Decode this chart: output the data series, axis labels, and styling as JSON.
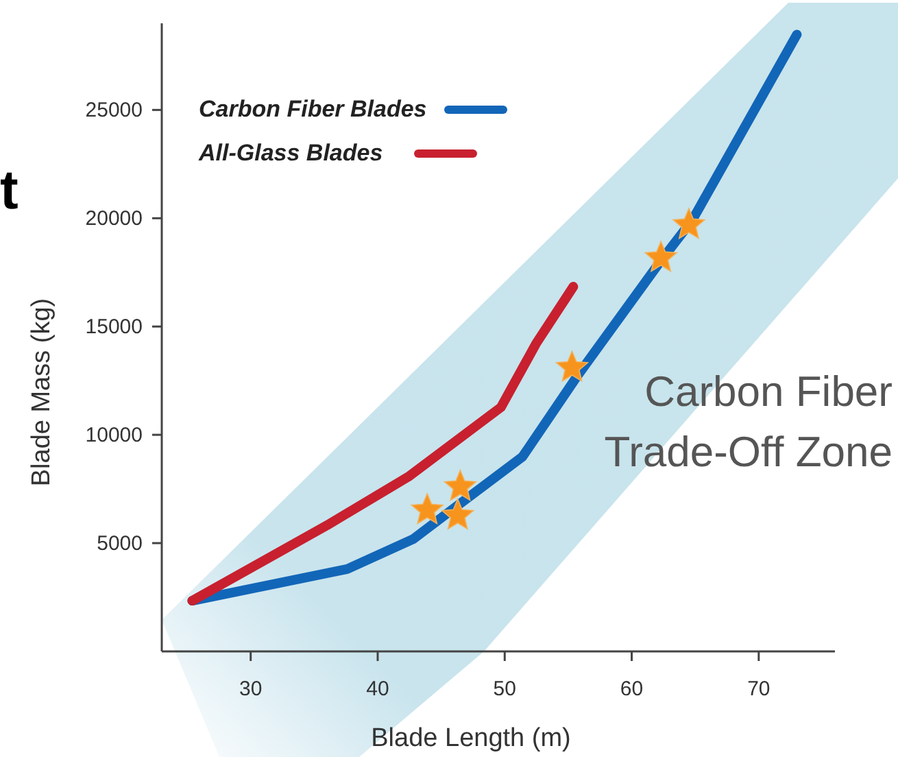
{
  "chart_data": {
    "type": "line",
    "title": "t",
    "xlabel": "Blade Length (m)",
    "ylabel": "Blade Mass (kg)",
    "xlim": [
      23,
      76
    ],
    "xticks": [
      30,
      40,
      50,
      60,
      70
    ],
    "ylim": [
      0,
      29000
    ],
    "yticks": [
      5000,
      10000,
      15000,
      20000,
      25000
    ],
    "legend": "top left",
    "grid": false,
    "line_style": "solid",
    "annotations": [
      "Carbon Fiber\nTrade-Off Zone"
    ],
    "series": [
      {
        "name": "Carbon Fiber Blades",
        "color": "#1266b8",
        "x": [
          25.4,
          37.6,
          42.8,
          46.8,
          51.4,
          55.8,
          62.3,
          64.8,
          73.0
        ],
        "values": [
          2340,
          3800,
          5190,
          6960,
          8990,
          12790,
          18040,
          19940,
          28480
        ]
      },
      {
        "name": "All-Glass Blades",
        "color": "#c8202f",
        "x": [
          25.4,
          36.0,
          42.5,
          49.7,
          52.5,
          55.4
        ],
        "values": [
          2340,
          5820,
          8100,
          11270,
          14240,
          16840
        ]
      },
      {
        "type": "scatter",
        "marker": "star",
        "color": "#f7941d",
        "x": [
          43.9,
          46.5,
          46.3,
          55.3,
          62.3,
          64.5
        ],
        "values": [
          6520,
          7600,
          6270,
          13100,
          18170,
          19690
        ]
      }
    ]
  }
}
